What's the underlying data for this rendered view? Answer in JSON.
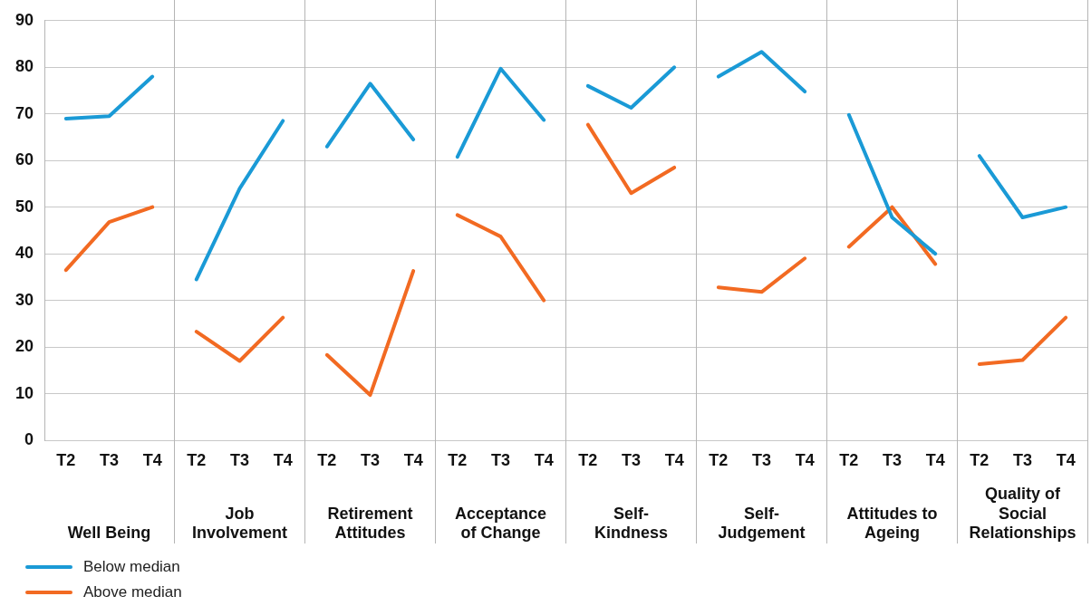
{
  "chart_data": [
    {
      "type": "line",
      "xlabel": "Well Being",
      "categories": [
        "T2",
        "T3",
        "T4"
      ],
      "ylim": [
        0,
        90
      ],
      "yticks": [
        0,
        10,
        20,
        30,
        40,
        50,
        60,
        70,
        80,
        90
      ],
      "grid": "y",
      "legend": "bottom left",
      "series": [
        {
          "name": "Below median",
          "color": "#1a9ad6",
          "values": [
            69,
            69.5,
            78
          ]
        },
        {
          "name": "Above median",
          "color": "#f26a22",
          "values": [
            36.5,
            46.8,
            50
          ]
        }
      ]
    },
    {
      "type": "line",
      "xlabel": "Job Involvement",
      "categories": [
        "T2",
        "T3",
        "T4"
      ],
      "ylim": [
        0,
        90
      ],
      "yticks": [
        0,
        10,
        20,
        30,
        40,
        50,
        60,
        70,
        80,
        90
      ],
      "grid": "y",
      "tick_labels": "x",
      "series": [
        {
          "color": "#1a9ad6",
          "values": [
            34.5,
            54,
            68.5
          ]
        },
        {
          "color": "#f26a22",
          "values": [
            23.3,
            17,
            26.3
          ]
        }
      ]
    },
    {
      "type": "line",
      "xlabel": "Retirement Attitudes",
      "categories": [
        "T2",
        "T3",
        "T4"
      ],
      "ylim": [
        0,
        90
      ],
      "yticks": [
        0,
        10,
        20,
        30,
        40,
        50,
        60,
        70,
        80,
        90
      ],
      "grid": "y",
      "tick_labels": "x",
      "series": [
        {
          "color": "#1a9ad6",
          "values": [
            63,
            76.5,
            64.5
          ]
        },
        {
          "color": "#f26a22",
          "values": [
            18.3,
            9.7,
            36.3
          ]
        }
      ]
    },
    {
      "type": "line",
      "xlabel": "Acceptance of Change",
      "categories": [
        "T2",
        "T3",
        "T4"
      ],
      "ylim": [
        0,
        90
      ],
      "yticks": [
        0,
        10,
        20,
        30,
        40,
        50,
        60,
        70,
        80,
        90
      ],
      "grid": "y",
      "tick_labels": "x",
      "series": [
        {
          "color": "#1a9ad6",
          "values": [
            60.8,
            79.7,
            68.7
          ]
        },
        {
          "color": "#f26a22",
          "values": [
            48.3,
            43.7,
            30
          ]
        }
      ]
    },
    {
      "type": "line",
      "xlabel": "Self-Kindness",
      "categories": [
        "T2",
        "T3",
        "T4"
      ],
      "ylim": [
        0,
        90
      ],
      "yticks": [
        0,
        10,
        20,
        30,
        40,
        50,
        60,
        70,
        80,
        90
      ],
      "grid": "y",
      "tick_labels": "x",
      "series": [
        {
          "color": "#1a9ad6",
          "values": [
            76,
            71.3,
            80
          ]
        },
        {
          "color": "#f26a22",
          "values": [
            67.7,
            53,
            58.5
          ]
        }
      ]
    },
    {
      "type": "line",
      "xlabel": "Self-Judgement",
      "categories": [
        "T2",
        "T3",
        "T4"
      ],
      "ylim": [
        0,
        90
      ],
      "yticks": [
        0,
        10,
        20,
        30,
        40,
        50,
        60,
        70,
        80,
        90
      ],
      "grid": "y",
      "tick_labels": "x",
      "series": [
        {
          "color": "#1a9ad6",
          "values": [
            78,
            83.3,
            74.8
          ]
        },
        {
          "color": "#f26a22",
          "values": [
            32.8,
            31.8,
            39
          ]
        }
      ]
    },
    {
      "type": "line",
      "xlabel": "Attitudes to Ageing",
      "categories": [
        "T2",
        "T3",
        "T4"
      ],
      "ylim": [
        0,
        90
      ],
      "yticks": [
        0,
        10,
        20,
        30,
        40,
        50,
        60,
        70,
        80,
        90
      ],
      "grid": "y",
      "tick_labels": "x",
      "series": [
        {
          "color": "#1a9ad6",
          "values": [
            69.8,
            47.8,
            40
          ]
        },
        {
          "color": "#f26a22",
          "values": [
            41.5,
            50,
            37.8
          ]
        }
      ]
    },
    {
      "type": "line",
      "xlabel": "Quality of Social Relationships",
      "categories": [
        "T2",
        "T3",
        "T4"
      ],
      "ylim": [
        0,
        90
      ],
      "yticks": [
        0,
        10,
        20,
        30,
        40,
        50,
        60,
        70,
        80,
        90
      ],
      "grid": "y",
      "tick_labels": "x",
      "series": [
        {
          "color": "#1a9ad6",
          "values": [
            61,
            47.8,
            50
          ]
        },
        {
          "color": "#f26a22",
          "values": [
            16.3,
            17.2,
            26.3
          ]
        }
      ]
    }
  ]
}
